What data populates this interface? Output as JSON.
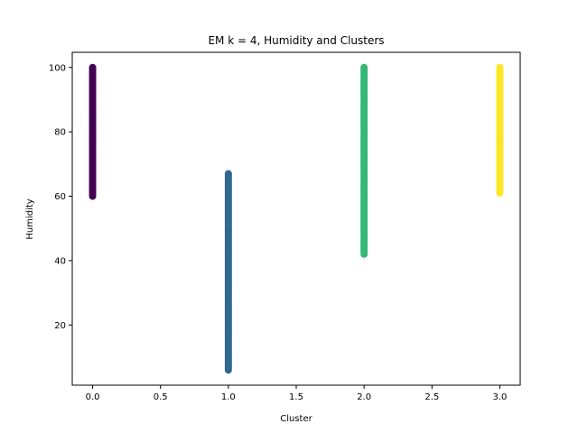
{
  "chart_data": {
    "type": "scatter",
    "title": "EM k = 4, Humidity and Clusters",
    "xlabel": "Cluster",
    "ylabel": "Humidity",
    "xlim": [
      -0.15,
      3.15
    ],
    "ylim": [
      1.3,
      104.7
    ],
    "xticks": [
      0.0,
      0.5,
      1.0,
      1.5,
      2.0,
      2.5,
      3.0
    ],
    "xtick_labels": [
      "0.0",
      "0.5",
      "1.0",
      "1.5",
      "2.0",
      "2.5",
      "3.0"
    ],
    "yticks": [
      20,
      40,
      60,
      80,
      100
    ],
    "ytick_labels": [
      "20",
      "40",
      "60",
      "80",
      "100"
    ],
    "grid": false,
    "series": [
      {
        "x": 0,
        "y_range": [
          60,
          100
        ],
        "color": "#440154"
      },
      {
        "x": 1,
        "y_range": [
          6,
          67
        ],
        "color": "#31688e"
      },
      {
        "x": 2,
        "y_range": [
          42,
          100
        ],
        "color": "#35b779"
      },
      {
        "x": 3,
        "y_range": [
          61,
          100
        ],
        "color": "#fde725"
      }
    ]
  }
}
